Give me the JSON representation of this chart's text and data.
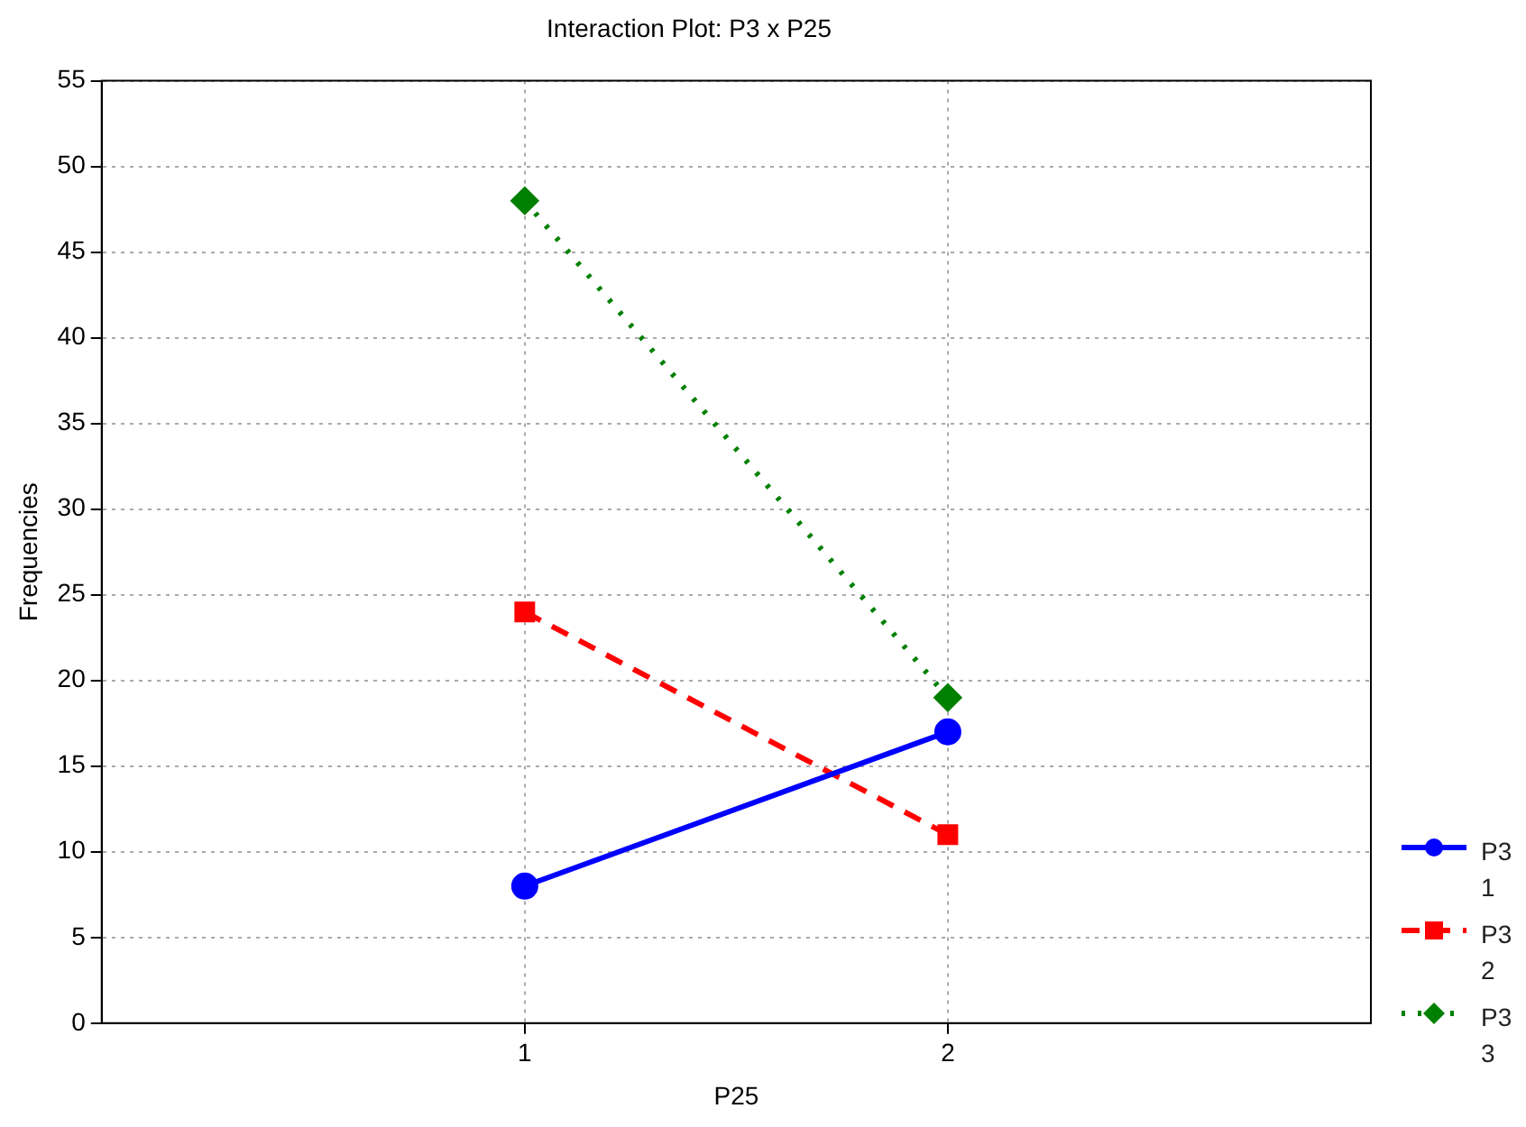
{
  "chart_data": {
    "type": "line",
    "title": "Interaction Plot: P3 x P25",
    "xlabel": "P25",
    "ylabel": "Frequencies",
    "x": [
      1,
      2
    ],
    "xlim": [
      0,
      3
    ],
    "xticks": [
      1,
      2
    ],
    "ylim": [
      0,
      55
    ],
    "yticks": [
      0,
      5,
      10,
      15,
      20,
      25,
      30,
      35,
      40,
      45,
      50,
      55
    ],
    "grid": true,
    "legend": "right",
    "series": [
      {
        "name": "P3 1",
        "color": "#0000ff",
        "values": [
          8,
          17
        ],
        "marker": "circle",
        "line_style": "solid"
      },
      {
        "name": "P3 2",
        "color": "#ff0000",
        "values": [
          24,
          11
        ],
        "marker": "square",
        "line_style": "dashed"
      },
      {
        "name": "P3 3",
        "color": "#008000",
        "values": [
          48,
          19
        ],
        "marker": "diamond",
        "line_style": "dotted"
      }
    ]
  }
}
